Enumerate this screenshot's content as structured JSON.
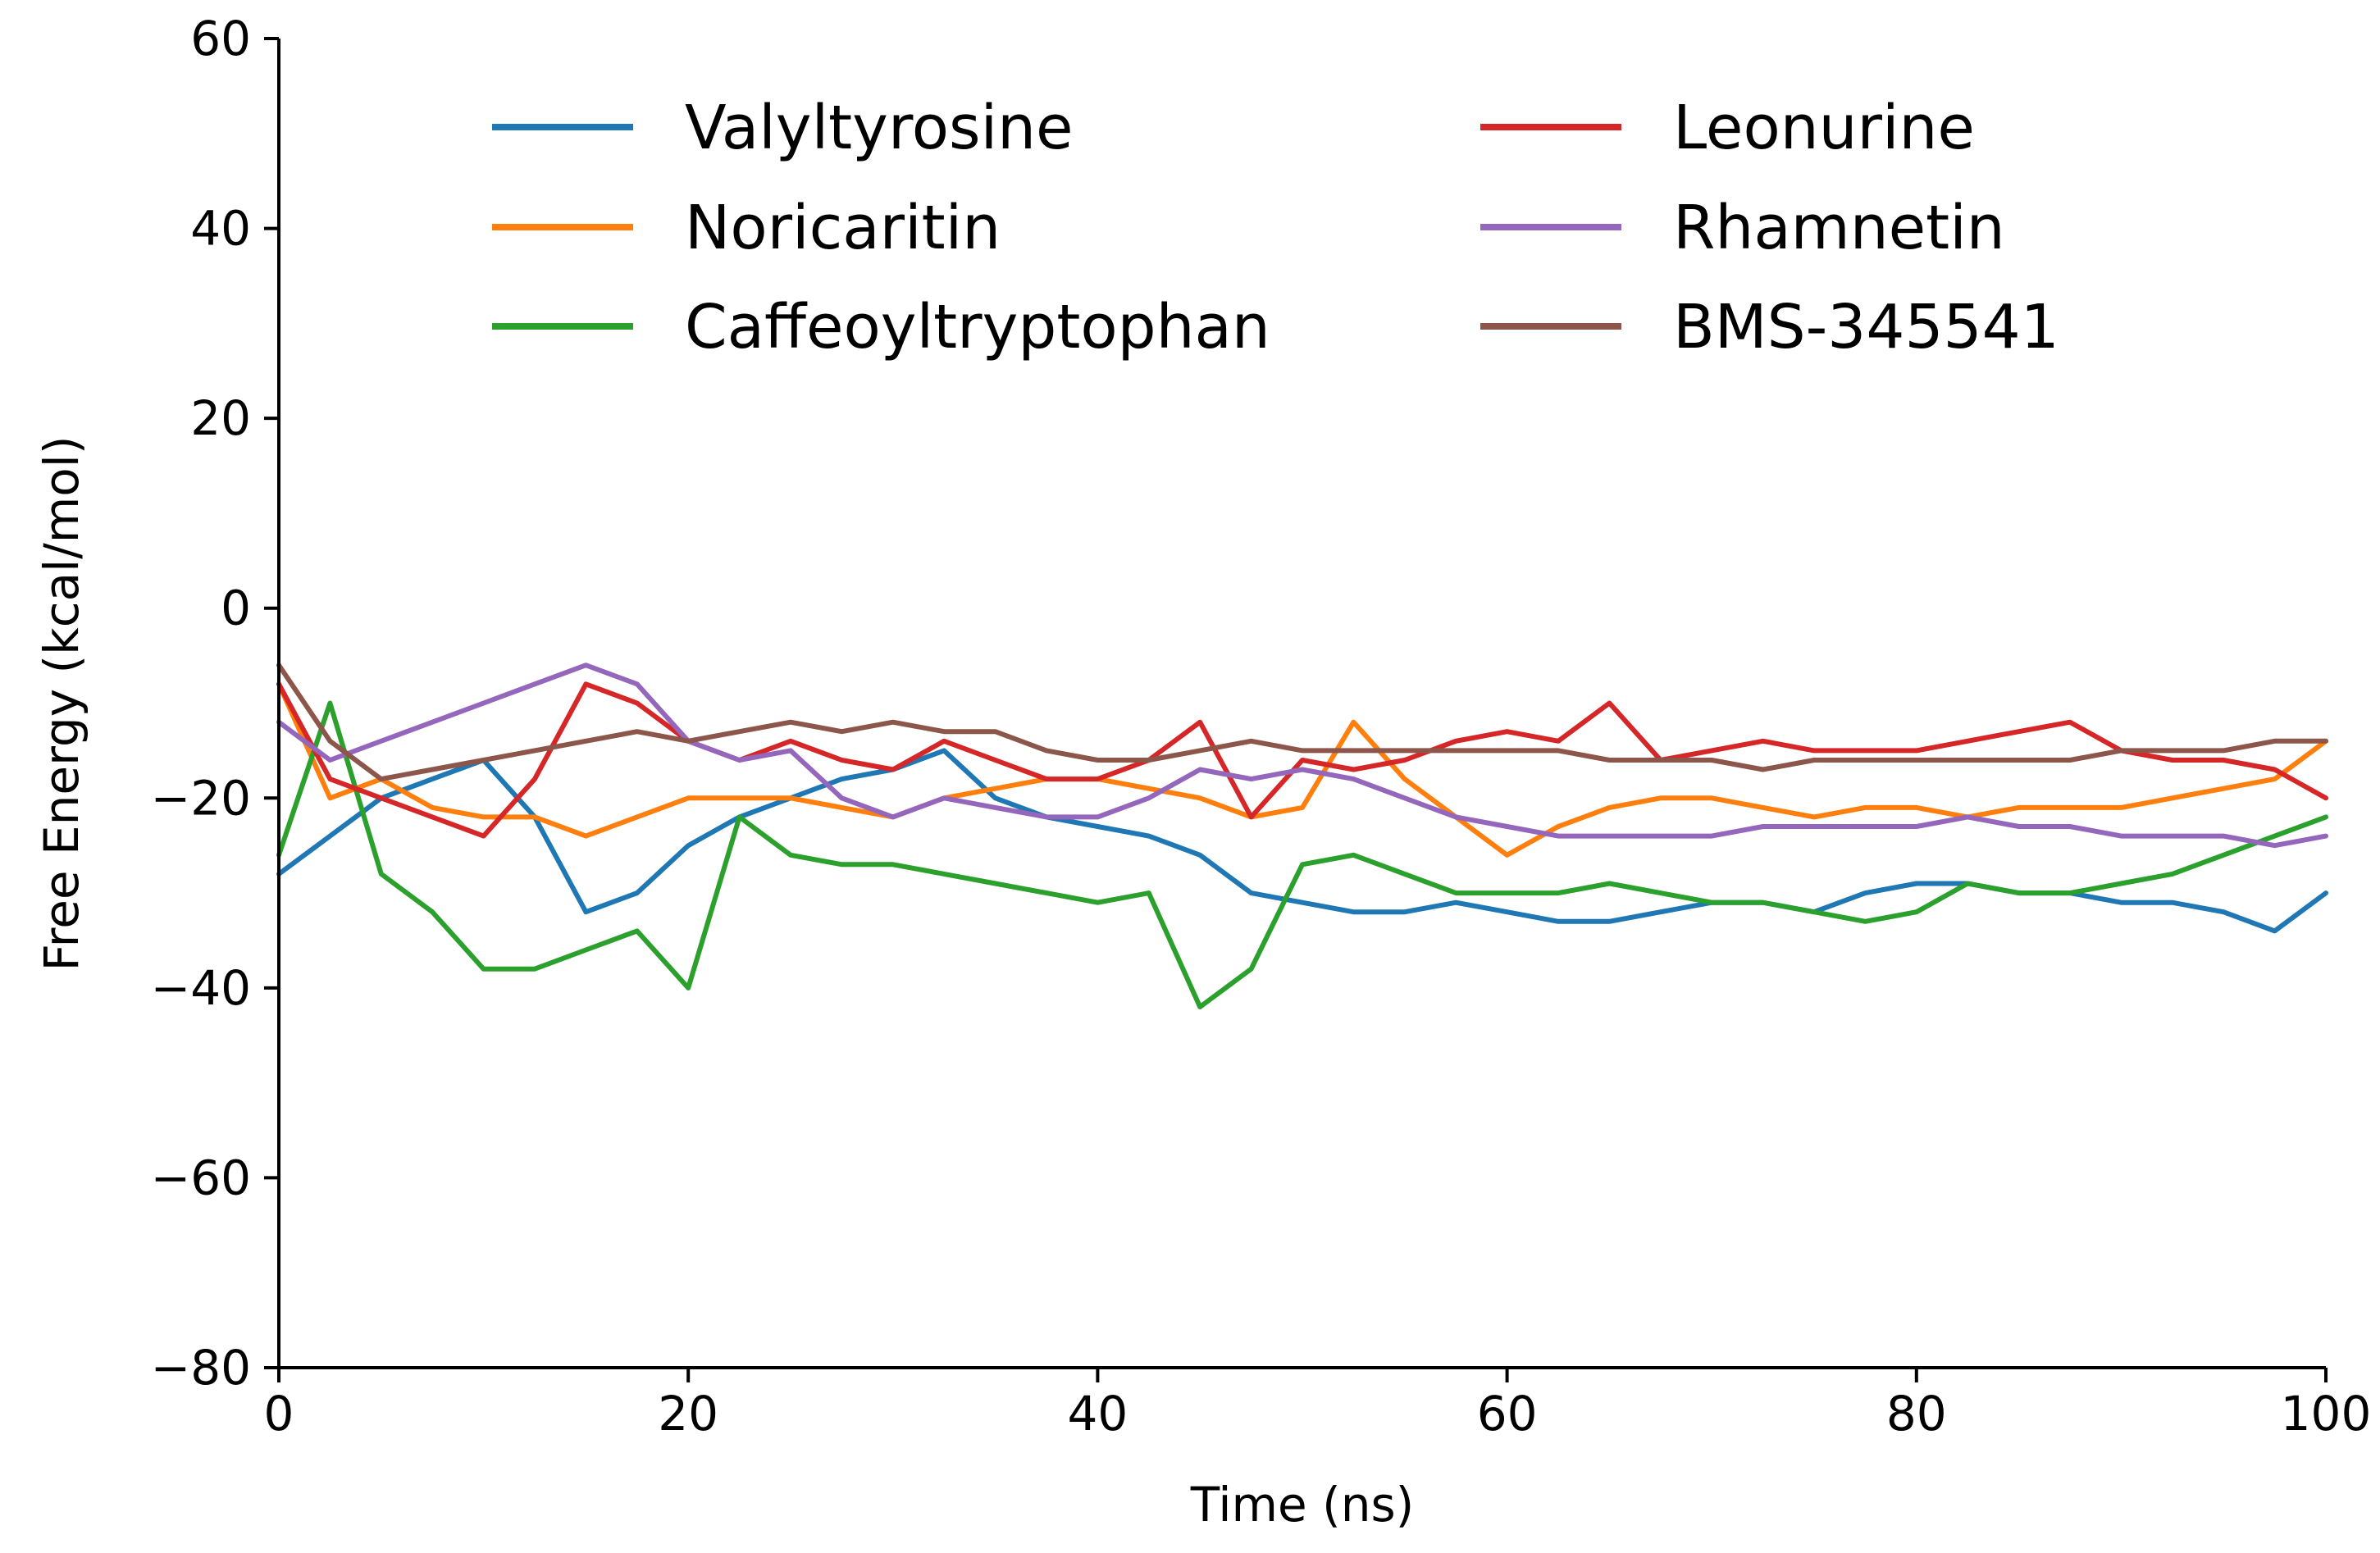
{
  "chart_data": {
    "type": "line",
    "title": "",
    "xlabel": "Time (ns)",
    "ylabel": "Free Energy (kcal/mol)",
    "xlim": [
      0,
      100
    ],
    "ylim": [
      -80,
      60
    ],
    "x_ticks": [
      0,
      20,
      40,
      60,
      80,
      100
    ],
    "y_ticks": [
      -80,
      -60,
      -40,
      -20,
      0,
      20,
      40,
      60
    ],
    "x_tick_labels": [
      "0",
      "20",
      "40",
      "60",
      "80",
      "100"
    ],
    "y_tick_labels": [
      "−80",
      "−60",
      "−40",
      "−20",
      "0",
      "20",
      "40",
      "60"
    ],
    "grid": false,
    "legend_position": "top, two columns",
    "x": [
      0,
      2.5,
      5,
      7.5,
      10,
      12.5,
      15,
      17.5,
      20,
      22.5,
      25,
      27.5,
      30,
      32.5,
      35,
      37.5,
      40,
      42.5,
      45,
      47.5,
      50,
      52.5,
      55,
      57.5,
      60,
      62.5,
      65,
      67.5,
      70,
      72.5,
      75,
      77.5,
      80,
      82.5,
      85,
      87.5,
      90,
      92.5,
      95,
      97.5,
      100
    ],
    "series": [
      {
        "name": "Valyltyrosine",
        "color": "#1f77b4",
        "values": [
          -28,
          -24,
          -20,
          -18,
          -16,
          -22,
          -32,
          -30,
          -25,
          -22,
          -20,
          -18,
          -17,
          -15,
          -20,
          -22,
          -23,
          -24,
          -26,
          -30,
          -31,
          -32,
          -32,
          -31,
          -32,
          -33,
          -33,
          -32,
          -31,
          -31,
          -32,
          -30,
          -29,
          -29,
          -30,
          -30,
          -31,
          -31,
          -32,
          -34,
          -30
        ]
      },
      {
        "name": "Noricaritin",
        "color": "#ff7f0e",
        "values": [
          -8,
          -20,
          -18,
          -21,
          -22,
          -22,
          -24,
          -22,
          -20,
          -20,
          -20,
          -21,
          -22,
          -20,
          -19,
          -18,
          -18,
          -19,
          -20,
          -22,
          -21,
          -12,
          -18,
          -22,
          -26,
          -23,
          -21,
          -20,
          -20,
          -21,
          -22,
          -21,
          -21,
          -22,
          -21,
          -21,
          -21,
          -20,
          -19,
          -18,
          -14
        ]
      },
      {
        "name": "Caffeoyltryptophan",
        "color": "#2ca02c",
        "values": [
          -26,
          -10,
          -28,
          -32,
          -38,
          -38,
          -36,
          -34,
          -40,
          -22,
          -26,
          -27,
          -27,
          -28,
          -29,
          -30,
          -31,
          -30,
          -42,
          -38,
          -27,
          -26,
          -28,
          -30,
          -30,
          -30,
          -29,
          -30,
          -31,
          -31,
          -32,
          -33,
          -32,
          -29,
          -30,
          -30,
          -29,
          -28,
          -26,
          -24,
          -22
        ]
      },
      {
        "name": "Leonurine",
        "color": "#d62728",
        "values": [
          -8,
          -18,
          -20,
          -22,
          -24,
          -18,
          -8,
          -10,
          -14,
          -16,
          -14,
          -16,
          -17,
          -14,
          -16,
          -18,
          -18,
          -16,
          -12,
          -22,
          -16,
          -17,
          -16,
          -14,
          -13,
          -14,
          -10,
          -16,
          -15,
          -14,
          -15,
          -15,
          -15,
          -14,
          -13,
          -12,
          -15,
          -16,
          -16,
          -17,
          -20
        ]
      },
      {
        "name": "Rhamnetin",
        "color": "#9467bd",
        "values": [
          -12,
          -16,
          -14,
          -12,
          -10,
          -8,
          -6,
          -8,
          -14,
          -16,
          -15,
          -20,
          -22,
          -20,
          -21,
          -22,
          -22,
          -20,
          -17,
          -18,
          -17,
          -18,
          -20,
          -22,
          -23,
          -24,
          -24,
          -24,
          -24,
          -23,
          -23,
          -23,
          -23,
          -22,
          -23,
          -23,
          -24,
          -24,
          -24,
          -25,
          -24
        ]
      },
      {
        "name": "BMS-345541",
        "color": "#8c564b",
        "values": [
          -6,
          -14,
          -18,
          -17,
          -16,
          -15,
          -14,
          -13,
          -14,
          -13,
          -12,
          -13,
          -12,
          -13,
          -13,
          -15,
          -16,
          -16,
          -15,
          -14,
          -15,
          -15,
          -15,
          -15,
          -15,
          -15,
          -16,
          -16,
          -16,
          -17,
          -16,
          -16,
          -16,
          -16,
          -16,
          -16,
          -15,
          -15,
          -15,
          -14,
          -14
        ]
      }
    ]
  }
}
